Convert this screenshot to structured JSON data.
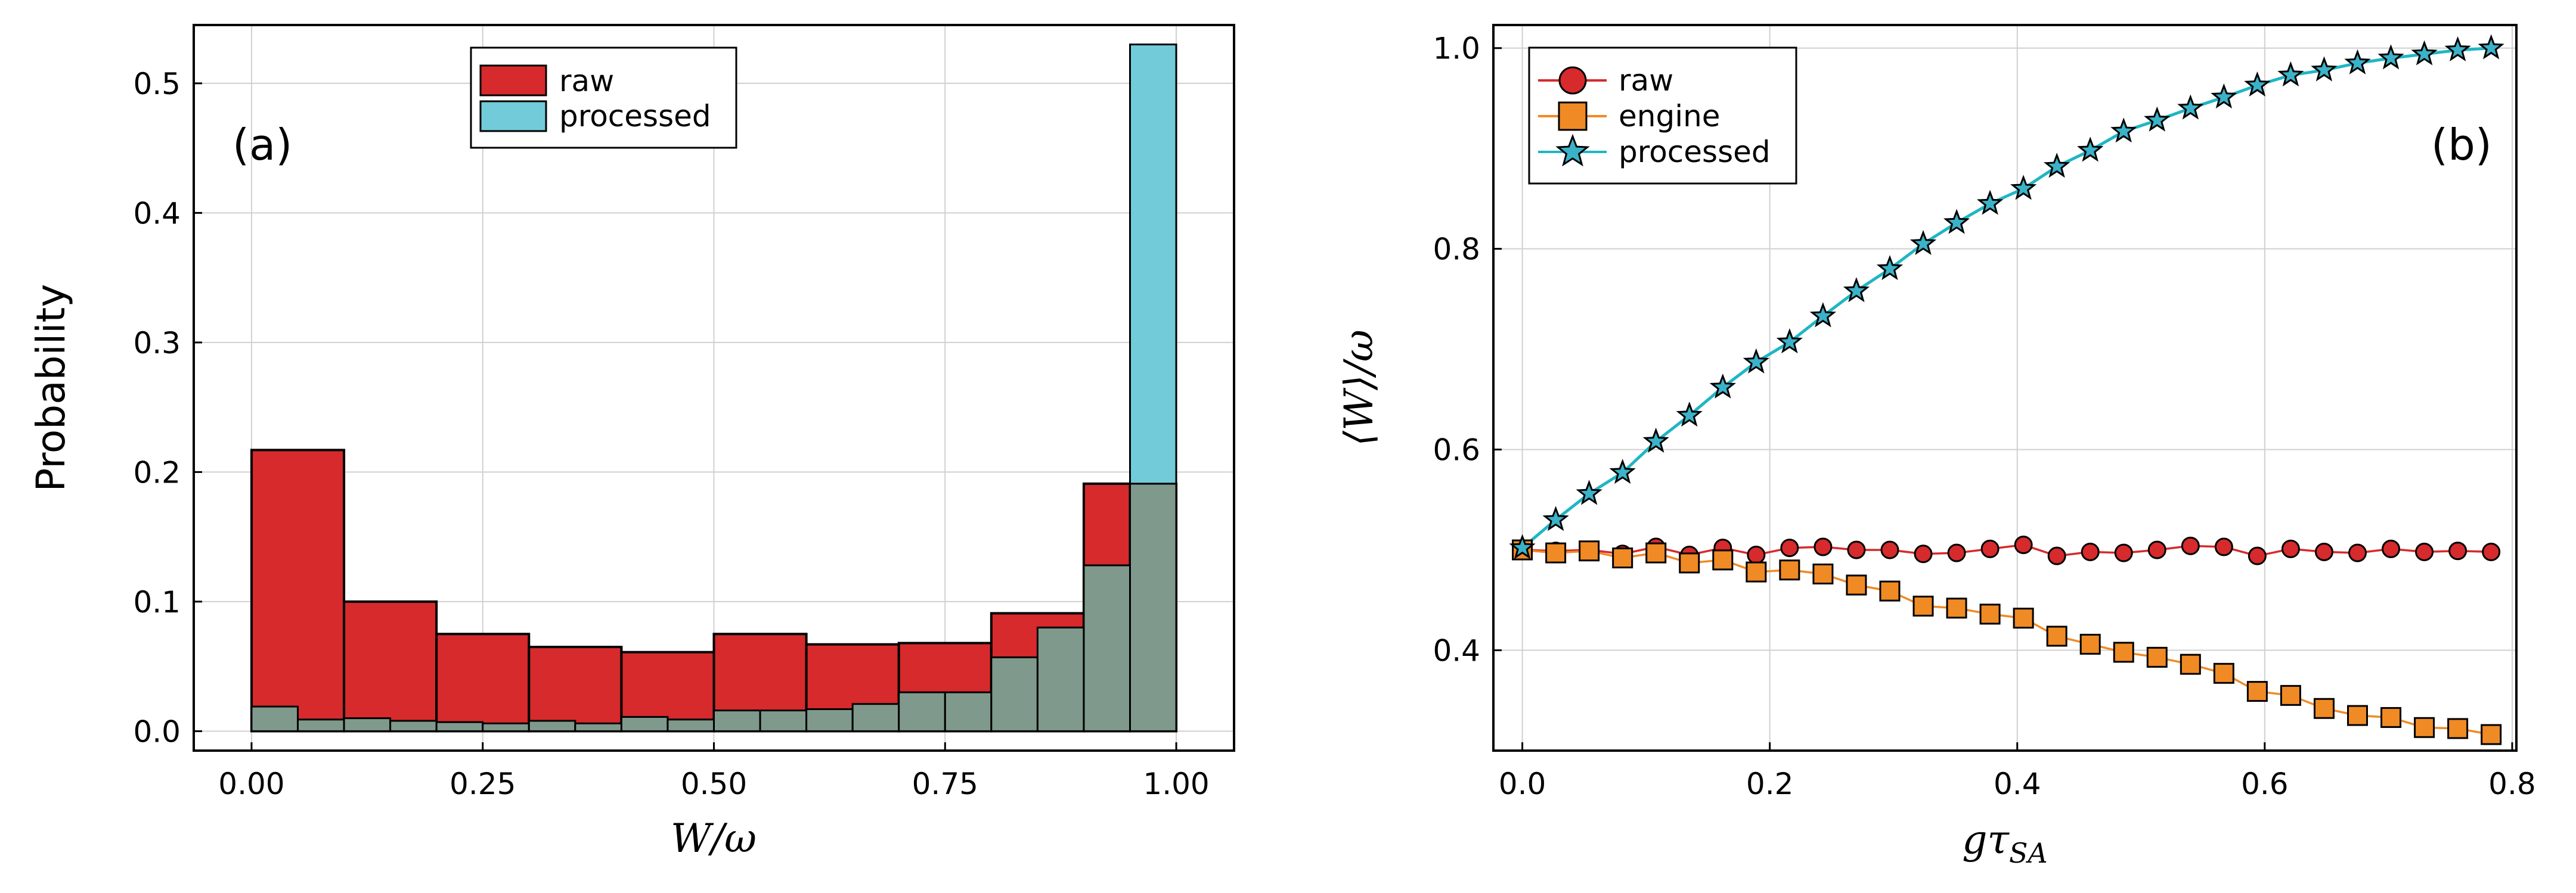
{
  "colors": {
    "raw": "#d62a2c",
    "processed": "#72cbd9",
    "overlap": "#7f9a8d",
    "engine": "#f08a24",
    "processed_line": "#1fb6c4",
    "marker_star": "#3bb2c8"
  },
  "chart_data": [
    {
      "type": "bar",
      "panel_label": "(a)",
      "title": "",
      "xlabel": "W/ω",
      "ylabel": "Probability",
      "xlim": [
        -0.0625,
        1.0625
      ],
      "ylim": [
        -0.015,
        0.545
      ],
      "xticks": [
        0.0,
        0.25,
        0.5,
        0.75,
        1.0
      ],
      "xtick_labels": [
        "0.00",
        "0.25",
        "0.50",
        "0.75",
        "1.00"
      ],
      "yticks": [
        0.0,
        0.1,
        0.2,
        0.3,
        0.4,
        0.5
      ],
      "ytick_labels": [
        "0.0",
        "0.1",
        "0.2",
        "0.3",
        "0.4",
        "0.5"
      ],
      "grid": true,
      "legend_position": "top-center",
      "legend": [
        "raw",
        "processed"
      ],
      "series": [
        {
          "name": "raw",
          "bin_edges": [
            0.0,
            0.1,
            0.2,
            0.3,
            0.4,
            0.5,
            0.6,
            0.7,
            0.8,
            0.9,
            0.95,
            1.0
          ],
          "values": [
            0.217,
            0.1,
            0.075,
            0.065,
            0.061,
            0.075,
            0.067,
            0.068,
            0.091,
            0.191,
            0.191
          ]
        },
        {
          "name": "processed",
          "bin_edges": [
            0.0,
            0.05,
            0.1,
            0.15,
            0.2,
            0.25,
            0.3,
            0.35,
            0.4,
            0.45,
            0.5,
            0.55,
            0.6,
            0.65,
            0.7,
            0.75,
            0.8,
            0.85,
            0.9,
            0.95,
            1.0
          ],
          "values": [
            0.019,
            0.009,
            0.01,
            0.008,
            0.007,
            0.006,
            0.008,
            0.006,
            0.011,
            0.009,
            0.016,
            0.016,
            0.017,
            0.021,
            0.03,
            0.03,
            0.057,
            0.08,
            0.128,
            0.53
          ]
        }
      ]
    },
    {
      "type": "line",
      "panel_label": "(b)",
      "title": "",
      "xlabel": "gτ_SA",
      "ylabel": "⟨W⟩/ω",
      "xlim": [
        -0.0234,
        0.8034
      ],
      "ylim": [
        0.3,
        1.023
      ],
      "xticks": [
        0.0,
        0.2,
        0.4,
        0.6,
        0.8
      ],
      "xtick_labels": [
        "0.0",
        "0.2",
        "0.4",
        "0.6",
        "0.8"
      ],
      "yticks": [
        0.4,
        0.6,
        0.8,
        1.0
      ],
      "ytick_labels": [
        "0.4",
        "0.6",
        "0.8",
        "1.0"
      ],
      "grid": true,
      "legend_position": "top-left",
      "legend": [
        "raw",
        "engine",
        "processed"
      ],
      "x": [
        0.0,
        0.027,
        0.054,
        0.081,
        0.108,
        0.135,
        0.162,
        0.189,
        0.216,
        0.243,
        0.27,
        0.297,
        0.324,
        0.351,
        0.378,
        0.405,
        0.432,
        0.459,
        0.486,
        0.513,
        0.54,
        0.567,
        0.594,
        0.621,
        0.648,
        0.675,
        0.702,
        0.729,
        0.756,
        0.783
      ],
      "series": [
        {
          "name": "raw",
          "marker": "circle",
          "values": [
            0.5,
            0.499,
            0.5,
            0.496,
            0.503,
            0.495,
            0.502,
            0.495,
            0.502,
            0.503,
            0.5,
            0.5,
            0.496,
            0.497,
            0.501,
            0.505,
            0.494,
            0.498,
            0.497,
            0.5,
            0.504,
            0.503,
            0.494,
            0.501,
            0.498,
            0.497,
            0.501,
            0.498,
            0.499,
            0.498
          ]
        },
        {
          "name": "engine",
          "marker": "square",
          "values": [
            0.5,
            0.497,
            0.499,
            0.492,
            0.497,
            0.487,
            0.49,
            0.478,
            0.48,
            0.476,
            0.465,
            0.459,
            0.444,
            0.442,
            0.436,
            0.432,
            0.414,
            0.406,
            0.398,
            0.393,
            0.386,
            0.377,
            0.359,
            0.355,
            0.342,
            0.335,
            0.333,
            0.323,
            0.322,
            0.316
          ]
        },
        {
          "name": "processed",
          "marker": "star",
          "values": [
            0.502,
            0.53,
            0.556,
            0.577,
            0.608,
            0.634,
            0.662,
            0.687,
            0.707,
            0.733,
            0.758,
            0.78,
            0.805,
            0.826,
            0.845,
            0.86,
            0.882,
            0.898,
            0.917,
            0.928,
            0.94,
            0.951,
            0.963,
            0.973,
            0.978,
            0.985,
            0.99,
            0.994,
            0.998,
            1.0
          ]
        }
      ]
    }
  ]
}
